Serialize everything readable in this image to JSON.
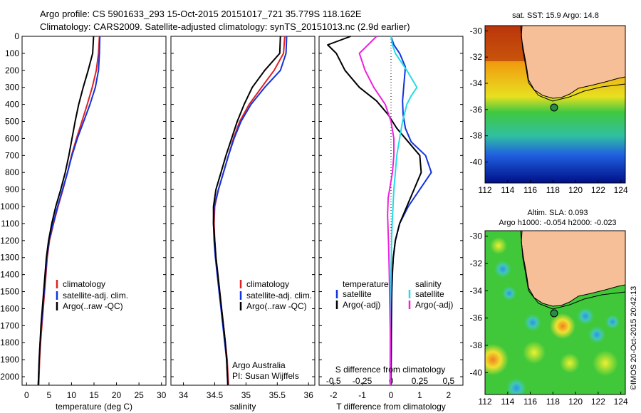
{
  "header": {
    "line1": "Argo profile: CS 5901633_293 15-Oct-2015 20151017_721 35.779S 118.162E",
    "line2": "Climatology: CARS2009. Satellite-adjusted climatology: synTS_20151013.nc (2.9d earlier)"
  },
  "colors": {
    "climatology": "#dd2222",
    "satellite": "#1133dd",
    "argo": "#000000",
    "sal_satellite": "#22dde8",
    "sal_argo": "#ee22dd",
    "land": "#f7bf98"
  },
  "chart_data": [
    {
      "type": "line",
      "xlabel": "temperature (deg C)",
      "ylabel": "",
      "xlim": [
        -1,
        31
      ],
      "ylim": [
        2050,
        0
      ],
      "xticks": [
        0,
        5,
        10,
        15,
        20,
        25,
        30
      ],
      "yticks": [
        0,
        100,
        200,
        300,
        400,
        500,
        600,
        700,
        800,
        900,
        1000,
        1100,
        1200,
        1300,
        1400,
        1500,
        1600,
        1700,
        1800,
        1900,
        2000
      ],
      "legend": [
        "climatology",
        "satellite-adj. clim.",
        "Argo(..raw -QC)"
      ],
      "legend_position": "center-right",
      "series": [
        {
          "name": "climatology",
          "x": [
            16.2,
            16.0,
            15.5,
            14.6,
            13.5,
            12.3,
            11.1,
            10.0,
            9.1,
            8.1,
            7.0,
            6.0,
            5.1,
            4.6,
            4.3,
            4.0,
            3.7,
            3.4,
            3.1,
            2.9,
            2.7
          ],
          "y": [
            0,
            100,
            200,
            300,
            400,
            500,
            600,
            700,
            800,
            900,
            1000,
            1100,
            1200,
            1300,
            1400,
            1500,
            1600,
            1700,
            1800,
            1900,
            2050
          ]
        },
        {
          "name": "satellite-adj. clim.",
          "x": [
            16.3,
            16.2,
            16.0,
            15.3,
            14.1,
            12.7,
            11.3,
            10.1,
            9.1,
            8.0,
            6.9,
            5.9,
            5.0,
            4.5,
            4.2,
            3.9,
            3.6,
            3.3,
            3.0,
            2.8,
            2.6
          ],
          "y": [
            0,
            100,
            200,
            300,
            400,
            500,
            600,
            700,
            800,
            900,
            1000,
            1100,
            1200,
            1300,
            1400,
            1500,
            1600,
            1700,
            1800,
            1900,
            2050
          ]
        },
        {
          "name": "Argo(..raw -QC)",
          "x": [
            14.9,
            14.7,
            13.7,
            12.6,
            11.6,
            10.8,
            10.1,
            9.4,
            8.6,
            7.6,
            6.5,
            5.6,
            4.9,
            4.4,
            4.1,
            3.8,
            3.5,
            3.2,
            3.0,
            2.8,
            2.6
          ],
          "y": [
            0,
            100,
            200,
            300,
            400,
            500,
            600,
            700,
            800,
            900,
            1000,
            1100,
            1200,
            1300,
            1400,
            1500,
            1600,
            1700,
            1800,
            1900,
            2050
          ]
        }
      ]
    },
    {
      "type": "line",
      "xlabel": "salinity",
      "ylabel": "",
      "xlim": [
        33.8,
        36.1
      ],
      "ylim": [
        2050,
        0
      ],
      "xticks": [
        34,
        34.5,
        35,
        35.5,
        36
      ],
      "legend": [
        "climatology",
        "satellite-adj. clim.",
        "Argo(..raw -QC)"
      ],
      "legend_position": "center-right",
      "annotations": [
        "Argo Australia",
        "PI: Susan Wijffels"
      ],
      "series": [
        {
          "name": "climatology",
          "x": [
            35.62,
            35.6,
            35.45,
            35.25,
            35.05,
            34.9,
            34.8,
            34.72,
            34.64,
            34.56,
            34.5,
            34.49,
            34.5,
            34.52,
            34.55,
            34.58,
            34.61,
            34.64,
            34.67,
            34.7,
            34.72
          ],
          "y": [
            0,
            100,
            200,
            300,
            400,
            500,
            600,
            700,
            800,
            900,
            1000,
            1100,
            1200,
            1300,
            1400,
            1500,
            1600,
            1700,
            1800,
            1900,
            2050
          ]
        },
        {
          "name": "satellite-adj. clim.",
          "x": [
            35.65,
            35.64,
            35.55,
            35.3,
            35.08,
            34.92,
            34.81,
            34.72,
            34.64,
            34.56,
            34.49,
            34.48,
            34.49,
            34.51,
            34.54,
            34.57,
            34.6,
            34.63,
            34.66,
            34.69,
            34.71
          ],
          "y": [
            0,
            100,
            200,
            300,
            400,
            500,
            600,
            700,
            800,
            900,
            1000,
            1100,
            1200,
            1300,
            1400,
            1500,
            1600,
            1700,
            1800,
            1900,
            2050
          ]
        },
        {
          "name": "Argo(..raw -QC)",
          "x": [
            35.55,
            35.54,
            35.3,
            35.1,
            34.97,
            34.86,
            34.77,
            34.68,
            34.6,
            34.52,
            34.48,
            34.48,
            34.5,
            34.52,
            34.55,
            34.58,
            34.61,
            34.64,
            34.67,
            34.69,
            34.71
          ],
          "y": [
            0,
            100,
            200,
            300,
            400,
            500,
            600,
            700,
            800,
            900,
            1000,
            1100,
            1200,
            1300,
            1400,
            1500,
            1600,
            1700,
            1800,
            1900,
            2050
          ]
        }
      ]
    },
    {
      "type": "line",
      "xlabel": "T difference from climatology",
      "top_xlabel": "S difference from climatology",
      "ylabel": "",
      "xlim": [
        -2.5,
        2.5
      ],
      "ylim": [
        2050,
        0
      ],
      "xticks": [
        -2,
        -1,
        0,
        1,
        2
      ],
      "top_ticks": [
        "-0.5",
        "-0.25",
        "0",
        "0.25",
        "0.5"
      ],
      "zero_line": "dotted",
      "legend_groups": [
        "temperature",
        "salinity"
      ],
      "legend": [
        "satellite",
        "Argo(-adj)",
        "satellite",
        "Argo(-adj)"
      ],
      "legend_position": "center",
      "series": [
        {
          "name": "satellite",
          "group": "temperature",
          "x": [
            0.0,
            0.1,
            0.3,
            0.5,
            0.45,
            0.4,
            0.42,
            0.5,
            0.7,
            1.2,
            1.4,
            1.0,
            0.6,
            0.3,
            0.15,
            0.08,
            0.05,
            0.03,
            0.02,
            0.01,
            0.0
          ],
          "y": [
            0,
            50,
            100,
            180,
            280,
            380,
            460,
            540,
            620,
            700,
            800,
            900,
            1000,
            1100,
            1200,
            1300,
            1400,
            1500,
            1600,
            1800,
            2050
          ]
        },
        {
          "name": "Argo(-adj)",
          "group": "temperature",
          "x": [
            -1.4,
            -2.2,
            -1.9,
            -1.6,
            -1.1,
            -0.5,
            -0.1,
            0.2,
            0.6,
            1.0,
            1.05,
            0.8,
            0.55,
            0.3,
            0.15,
            0.08,
            0.04,
            0.02,
            0.01,
            0.0
          ],
          "y": [
            0,
            50,
            100,
            200,
            300,
            380,
            460,
            540,
            620,
            700,
            800,
            900,
            1000,
            1100,
            1200,
            1300,
            1400,
            1500,
            1700,
            2050
          ]
        },
        {
          "name": "satellite",
          "group": "salinity",
          "x": [
            0.0,
            0.05,
            0.15,
            0.55,
            0.9,
            0.7,
            0.55,
            0.4,
            0.3,
            0.2,
            0.15,
            0.1,
            0.07,
            0.04,
            0.02,
            0.0,
            -0.02,
            -0.03,
            -0.04
          ],
          "y": [
            0,
            50,
            100,
            200,
            300,
            350,
            400,
            500,
            600,
            700,
            800,
            900,
            1000,
            1100,
            1200,
            1400,
            1600,
            1800,
            2050
          ]
        },
        {
          "name": "Argo(-adj)",
          "group": "salinity",
          "x": [
            -0.5,
            -0.8,
            -1.1,
            -0.9,
            -0.6,
            -0.2,
            0.0,
            0.1,
            0.1,
            0.05,
            -0.1,
            -0.12,
            -0.1,
            -0.08,
            -0.06,
            -0.04,
            -0.02,
            -0.01
          ],
          "y": [
            0,
            50,
            100,
            200,
            300,
            400,
            500,
            600,
            700,
            800,
            950,
            1050,
            1150,
            1250,
            1400,
            1600,
            1800,
            2050
          ]
        }
      ]
    },
    {
      "type": "heatmap",
      "title": "sat. SST: 15.9 Argo: 14.8",
      "xticks": [
        112,
        114,
        116,
        118,
        120,
        122,
        124
      ],
      "yticks": [
        -30,
        -32,
        -34,
        -36,
        -38,
        -40
      ],
      "xlim": [
        112,
        124.4
      ],
      "ylim": [
        -41.6,
        -29.6
      ],
      "marker": {
        "lon": 118.162,
        "lat": -35.779
      },
      "colormap": "jet"
    },
    {
      "type": "heatmap",
      "title": "Altim. SLA: 0.093",
      "subtitle": "Argo h1000: -0.054 h2000: -0.023",
      "xticks": [
        112,
        114,
        116,
        118,
        120,
        122,
        124
      ],
      "yticks": [
        -30,
        -32,
        -34,
        -36,
        -38,
        -40
      ],
      "xlim": [
        112,
        124.4
      ],
      "ylim": [
        -41.6,
        -29.6
      ],
      "marker": {
        "lon": 118.162,
        "lat": -35.779
      },
      "colormap": "jet"
    }
  ],
  "side_credit": "©IMOS 20-Oct-2015 20:42:13"
}
